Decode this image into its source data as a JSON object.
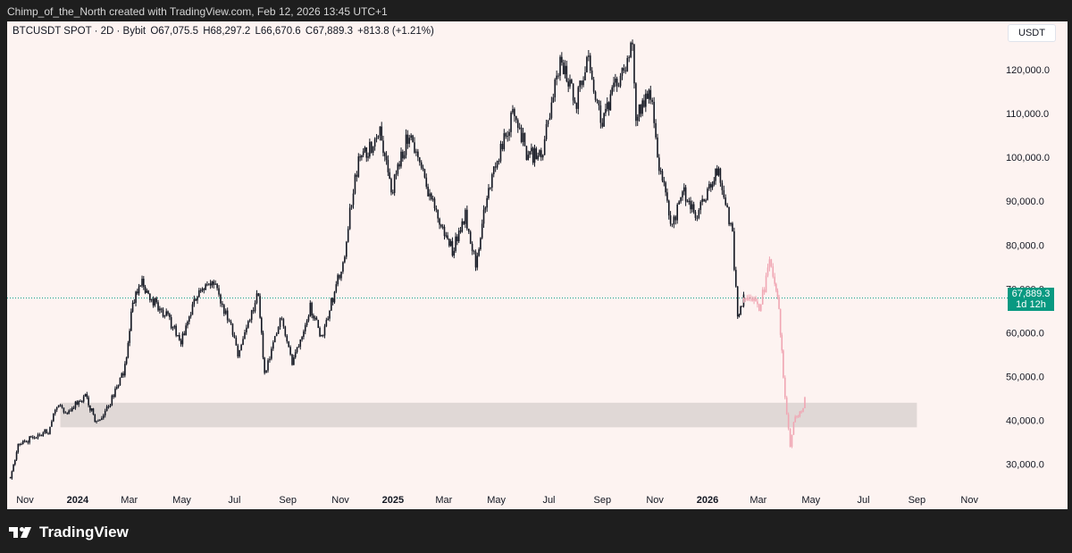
{
  "header": {
    "caption": "Chimp_of_the_North created with TradingView.com, Feb 12, 2026 13:45 UTC+1"
  },
  "legend": {
    "symbol": "BTCUSDT SPOT · 2D · Bybit",
    "open": "O67,075.5",
    "high": "H68,297.2",
    "low": "L66,670.6",
    "close": "C67,889.3",
    "change": "+813.8 (+1.21%)"
  },
  "currency_button": "USDT",
  "last_price": {
    "value": "67,889.3",
    "countdown": "1d 12h"
  },
  "footer": {
    "brand": "TradingView"
  },
  "colors": {
    "background": "#fdf3f1",
    "candles": "#131722",
    "projection": "#f0a6b3",
    "zone": "#e0d8d6",
    "badge": "#089981",
    "price_line": "#089981"
  },
  "chart_data": {
    "type": "candlestick",
    "xlabel": "",
    "ylabel": "",
    "x_ticks": [
      "Nov",
      "2024",
      "Mar",
      "May",
      "Jul",
      "Sep",
      "Nov",
      "2025",
      "Mar",
      "May",
      "Jul",
      "Sep",
      "Nov",
      "2026",
      "Mar",
      "May",
      "Jul",
      "Sep",
      "Nov"
    ],
    "x_tick_dates": [
      "2023-11-01",
      "2024-01-01",
      "2024-03-01",
      "2024-05-01",
      "2024-07-01",
      "2024-09-01",
      "2024-11-01",
      "2025-01-01",
      "2025-03-01",
      "2025-05-01",
      "2025-07-01",
      "2025-09-01",
      "2025-11-01",
      "2026-01-01",
      "2026-03-01",
      "2026-05-01",
      "2026-07-01",
      "2026-09-01",
      "2026-11-01"
    ],
    "y_ticks": [
      "30,000.0",
      "40,000.0",
      "50,000.0",
      "60,000.0",
      "70,000.0",
      "80,000.0",
      "90,000.0",
      "100,000.0",
      "110,000.0",
      "120,000.0"
    ],
    "y_tick_values": [
      30000,
      40000,
      50000,
      60000,
      70000,
      80000,
      90000,
      100000,
      110000,
      120000
    ],
    "ylim": [
      24000,
      128000
    ],
    "grid": false,
    "current_price": 67889.3,
    "zone": {
      "from": "2023-12-12",
      "to": "2026-09-01",
      "low": 38400,
      "high": 44000
    },
    "series": [
      {
        "style": "candles",
        "points": [
          {
            "date": "2023-10-15",
            "price": 27000
          },
          {
            "date": "2023-10-24",
            "price": 34000
          },
          {
            "date": "2023-11-12",
            "price": 36500
          },
          {
            "date": "2023-11-28",
            "price": 37500
          },
          {
            "date": "2023-12-08",
            "price": 43500
          },
          {
            "date": "2023-12-20",
            "price": 42000
          },
          {
            "date": "2024-01-10",
            "price": 45500
          },
          {
            "date": "2024-01-23",
            "price": 39500
          },
          {
            "date": "2024-02-08",
            "price": 44000
          },
          {
            "date": "2024-02-25",
            "price": 52000
          },
          {
            "date": "2024-03-05",
            "price": 67000
          },
          {
            "date": "2024-03-14",
            "price": 72000
          },
          {
            "date": "2024-03-25",
            "price": 68000
          },
          {
            "date": "2024-04-13",
            "price": 64000
          },
          {
            "date": "2024-04-30",
            "price": 58000
          },
          {
            "date": "2024-05-21",
            "price": 70000
          },
          {
            "date": "2024-06-07",
            "price": 71000
          },
          {
            "date": "2024-06-27",
            "price": 61000
          },
          {
            "date": "2024-07-05",
            "price": 55000
          },
          {
            "date": "2024-07-29",
            "price": 69000
          },
          {
            "date": "2024-08-05",
            "price": 50000
          },
          {
            "date": "2024-08-25",
            "price": 64000
          },
          {
            "date": "2024-09-06",
            "price": 53000
          },
          {
            "date": "2024-09-27",
            "price": 66000
          },
          {
            "date": "2024-10-10",
            "price": 59000
          },
          {
            "date": "2024-10-29",
            "price": 72000
          },
          {
            "date": "2024-11-06",
            "price": 76000
          },
          {
            "date": "2024-11-12",
            "price": 88000
          },
          {
            "date": "2024-11-22",
            "price": 99000
          },
          {
            "date": "2024-12-05",
            "price": 102000
          },
          {
            "date": "2024-12-17",
            "price": 107000
          },
          {
            "date": "2024-12-30",
            "price": 92000
          },
          {
            "date": "2025-01-20",
            "price": 106000
          },
          {
            "date": "2025-02-03",
            "price": 97000
          },
          {
            "date": "2025-02-26",
            "price": 84000
          },
          {
            "date": "2025-03-11",
            "price": 79000
          },
          {
            "date": "2025-03-26",
            "price": 87000
          },
          {
            "date": "2025-04-07",
            "price": 76000
          },
          {
            "date": "2025-04-22",
            "price": 93000
          },
          {
            "date": "2025-05-22",
            "price": 111000
          },
          {
            "date": "2025-06-05",
            "price": 101000
          },
          {
            "date": "2025-06-22",
            "price": 100000
          },
          {
            "date": "2025-07-14",
            "price": 122000
          },
          {
            "date": "2025-08-02",
            "price": 113000
          },
          {
            "date": "2025-08-14",
            "price": 123000
          },
          {
            "date": "2025-09-01",
            "price": 108000
          },
          {
            "date": "2025-09-18",
            "price": 117000
          },
          {
            "date": "2025-10-06",
            "price": 125000
          },
          {
            "date": "2025-10-10",
            "price": 110000
          },
          {
            "date": "2025-10-27",
            "price": 115000
          },
          {
            "date": "2025-11-04",
            "price": 100000
          },
          {
            "date": "2025-11-21",
            "price": 84000
          },
          {
            "date": "2025-12-03",
            "price": 93000
          },
          {
            "date": "2025-12-18",
            "price": 86000
          },
          {
            "date": "2026-01-05",
            "price": 94000
          },
          {
            "date": "2026-01-14",
            "price": 97000
          },
          {
            "date": "2026-01-30",
            "price": 82000
          },
          {
            "date": "2026-02-05",
            "price": 63000
          },
          {
            "date": "2026-02-12",
            "price": 67889
          }
        ]
      },
      {
        "style": "projection",
        "points": [
          {
            "date": "2026-02-12",
            "price": 67889
          },
          {
            "date": "2026-02-20",
            "price": 69000
          },
          {
            "date": "2026-03-02",
            "price": 66000
          },
          {
            "date": "2026-03-08",
            "price": 70000
          },
          {
            "date": "2026-03-14",
            "price": 76000
          },
          {
            "date": "2026-03-20",
            "price": 72000
          },
          {
            "date": "2026-03-25",
            "price": 65000
          },
          {
            "date": "2026-03-30",
            "price": 50000
          },
          {
            "date": "2026-04-03",
            "price": 42000
          },
          {
            "date": "2026-04-07",
            "price": 34000
          },
          {
            "date": "2026-04-11",
            "price": 40000
          },
          {
            "date": "2026-04-20",
            "price": 42000
          },
          {
            "date": "2026-04-24",
            "price": 44500
          }
        ]
      }
    ]
  }
}
